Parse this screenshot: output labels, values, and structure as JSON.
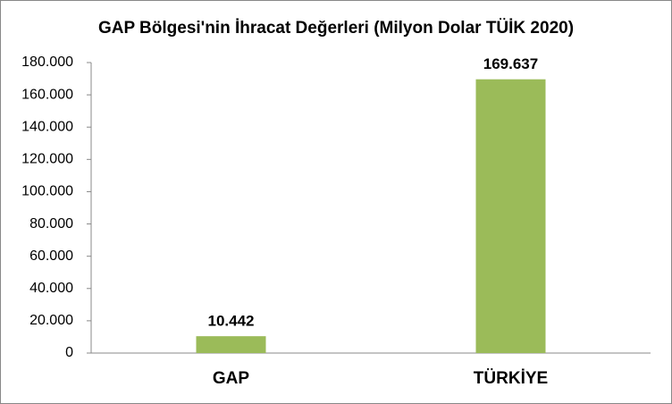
{
  "chart_data": {
    "type": "bar",
    "title": "GAP Bölgesi'nin İhracat Değerleri (Milyon Dolar TÜİK 2020)",
    "categories": [
      "GAP",
      "TÜRKİYE"
    ],
    "values": [
      10442,
      169637
    ],
    "value_labels": [
      "10.442",
      "169.637"
    ],
    "color": "#9bbb59",
    "ylim": [
      0,
      180000
    ],
    "yticks": [
      0,
      {
        "value": 20000,
        "label": "20.000"
      },
      {
        "value": 40000,
        "label": "40.000"
      },
      {
        "value": 60000,
        "label": "60.000"
      },
      {
        "value": 80000,
        "label": "80.000"
      },
      {
        "value": 100000,
        "label": "100.000"
      },
      {
        "value": 120000,
        "label": "120.000"
      },
      {
        "value": 140000,
        "label": "140.000"
      },
      {
        "value": 160000,
        "label": "160.000"
      },
      {
        "value": 180000,
        "label": "180.000"
      }
    ],
    "grid": false
  }
}
